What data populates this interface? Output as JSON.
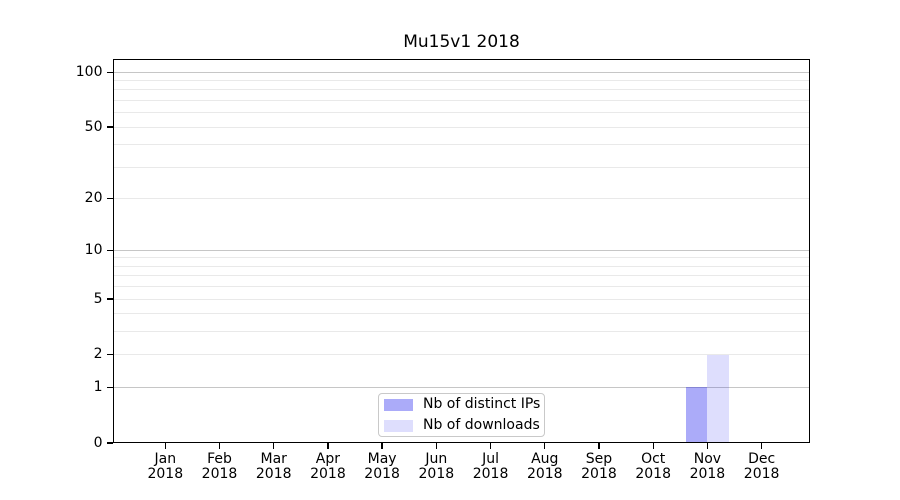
{
  "chart_data": {
    "type": "bar",
    "title": "Mu15v1 2018",
    "categories": [
      {
        "month": "Jan",
        "year": "2018"
      },
      {
        "month": "Feb",
        "year": "2018"
      },
      {
        "month": "Mar",
        "year": "2018"
      },
      {
        "month": "Apr",
        "year": "2018"
      },
      {
        "month": "May",
        "year": "2018"
      },
      {
        "month": "Jun",
        "year": "2018"
      },
      {
        "month": "Jul",
        "year": "2018"
      },
      {
        "month": "Aug",
        "year": "2018"
      },
      {
        "month": "Sep",
        "year": "2018"
      },
      {
        "month": "Oct",
        "year": "2018"
      },
      {
        "month": "Nov",
        "year": "2018"
      },
      {
        "month": "Dec",
        "year": "2018"
      }
    ],
    "series": [
      {
        "name": "Nb of distinct IPs",
        "color_hex": "#aaaaf8",
        "color_rgba": "rgba(8,8,238,0.34)",
        "values": [
          0,
          0,
          0,
          0,
          0,
          0,
          0,
          0,
          0,
          0,
          1,
          0
        ]
      },
      {
        "name": "Nb of downloads",
        "color_hex": "#dcdcfb",
        "color_rgba": "rgba(8,8,238,0.135)",
        "values": [
          0,
          0,
          0,
          0,
          0,
          0,
          0,
          0,
          0,
          0,
          2,
          0
        ]
      }
    ],
    "xlabel": "",
    "ylabel": "",
    "yaxis": {
      "scale": "log1p",
      "ylim": [
        0,
        118
      ],
      "ticks": [
        {
          "value": 0,
          "label": "0"
        },
        {
          "value": 1,
          "label": "1"
        },
        {
          "value": 2,
          "label": "2"
        },
        {
          "value": 5,
          "label": "5"
        },
        {
          "value": 10,
          "label": "10"
        },
        {
          "value": 20,
          "label": "20"
        },
        {
          "value": 50,
          "label": "50"
        },
        {
          "value": 100,
          "label": "100"
        }
      ],
      "major_grid": [
        1,
        10,
        100
      ],
      "minor_grid": [
        2,
        3,
        4,
        5,
        6,
        7,
        8,
        9,
        20,
        30,
        40,
        50,
        60,
        70,
        80,
        90
      ]
    },
    "grid": {
      "axis": "y",
      "major_color": "#c6c6c6",
      "minor_color": "#e9e9e9"
    },
    "legend": {
      "position": "lower center",
      "border_color": "#c9c9c9",
      "background": "#ffffff"
    },
    "colors": {
      "background": "#ffffff",
      "spine": "#000000",
      "text": "#000000"
    }
  }
}
